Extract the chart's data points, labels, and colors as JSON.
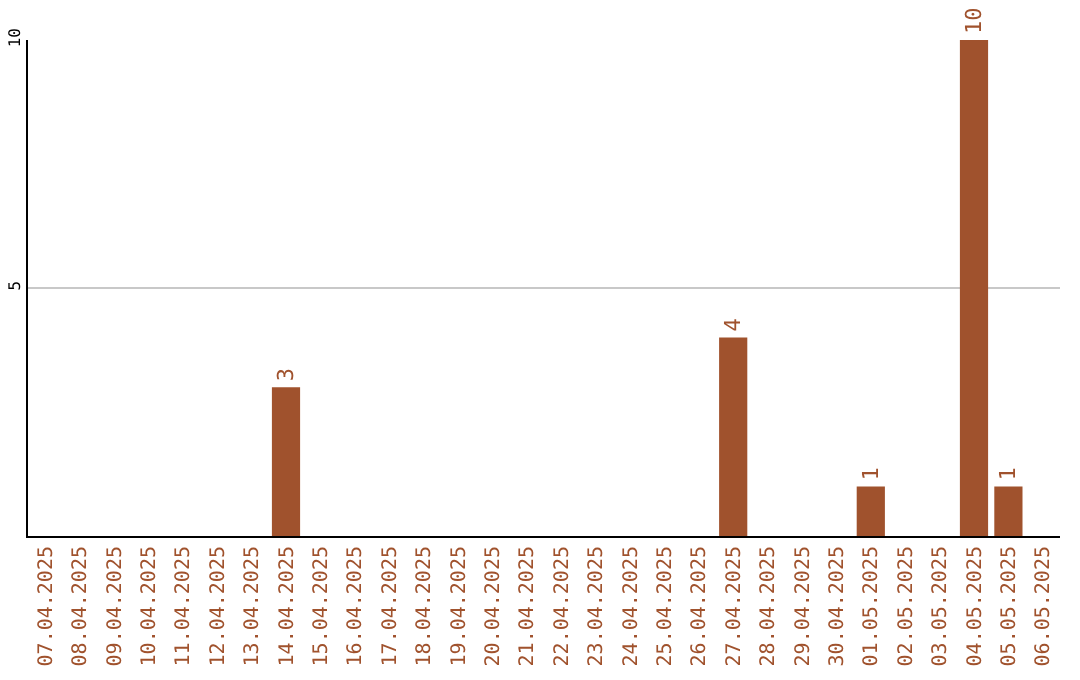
{
  "chart_data": {
    "type": "bar",
    "categories": [
      "07.04.2025",
      "08.04.2025",
      "09.04.2025",
      "10.04.2025",
      "11.04.2025",
      "12.04.2025",
      "13.04.2025",
      "14.04.2025",
      "15.04.2025",
      "16.04.2025",
      "17.04.2025",
      "18.04.2025",
      "19.04.2025",
      "20.04.2025",
      "21.04.2025",
      "22.04.2025",
      "23.04.2025",
      "24.04.2025",
      "25.04.2025",
      "26.04.2025",
      "27.04.2025",
      "28.04.2025",
      "29.04.2025",
      "30.04.2025",
      "01.05.2025",
      "02.05.2025",
      "03.05.2025",
      "04.05.2025",
      "05.05.2025",
      "06.05.2025"
    ],
    "values": [
      0,
      0,
      0,
      0,
      0,
      0,
      0,
      3,
      0,
      0,
      0,
      0,
      0,
      0,
      0,
      0,
      0,
      0,
      0,
      0,
      4,
      0,
      0,
      0,
      1,
      0,
      0,
      10,
      1,
      0
    ],
    "value_labels": [
      null,
      null,
      null,
      null,
      null,
      null,
      null,
      "3",
      null,
      null,
      null,
      null,
      null,
      null,
      null,
      null,
      null,
      null,
      null,
      null,
      "4",
      null,
      null,
      null,
      "1",
      null,
      null,
      "10",
      "1",
      null
    ],
    "color": "#a0522d",
    "ylim": [
      0,
      10
    ],
    "yticks": [
      5,
      10
    ],
    "grid": "y"
  }
}
